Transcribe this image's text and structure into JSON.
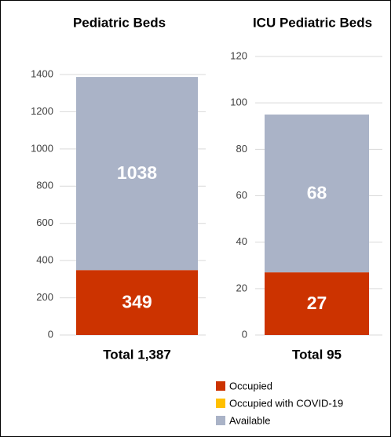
{
  "chart_data": [
    {
      "type": "stacked-bar",
      "title": "Pediatric Beds",
      "categories": [
        "Total 1,387"
      ],
      "series": [
        {
          "name": "Occupied",
          "color": "#cc3300",
          "values": [
            349
          ]
        },
        {
          "name": "Occupied with COVID-19",
          "color": "#ffc000",
          "values": [
            0
          ]
        },
        {
          "name": "Available",
          "color": "#aab3c7",
          "values": [
            1038
          ]
        }
      ],
      "ylim": [
        0,
        1400
      ],
      "yticks": [
        0,
        200,
        400,
        600,
        800,
        1000,
        1200,
        1400
      ],
      "grid": true
    },
    {
      "type": "stacked-bar",
      "title": "ICU Pediatric Beds",
      "categories": [
        "Total 95"
      ],
      "series": [
        {
          "color": "#cc3300",
          "values": [
            27
          ]
        },
        {
          "color": "#ffc000",
          "values": [
            0
          ]
        },
        {
          "color": "#aab3c7",
          "values": [
            68
          ]
        }
      ],
      "ylim": [
        0,
        120
      ],
      "yticks": [
        0,
        20,
        40,
        60,
        80,
        100,
        120
      ],
      "grid": true
    }
  ]
}
